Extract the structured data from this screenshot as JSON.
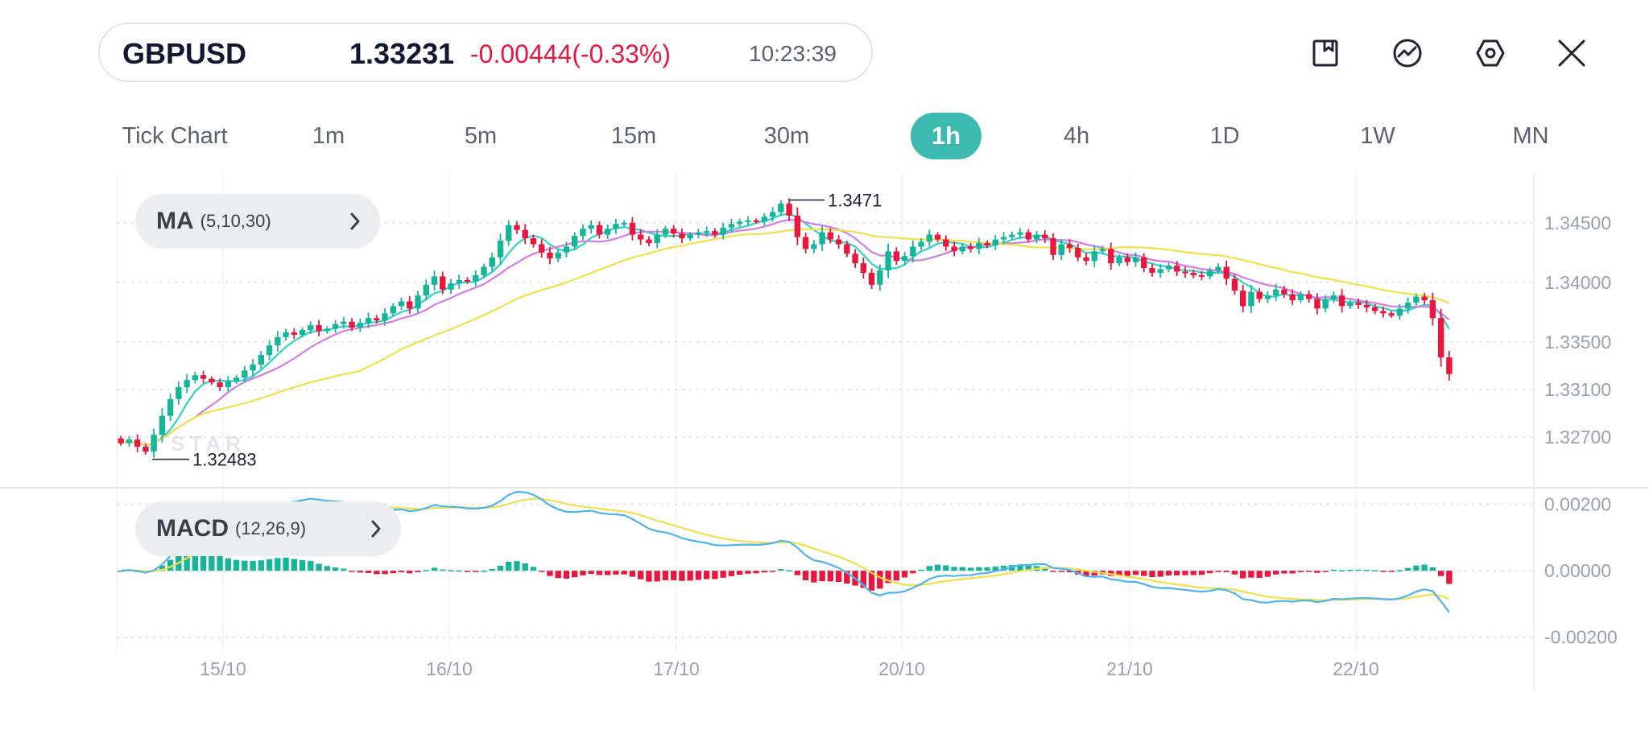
{
  "quote": {
    "symbol": "GBPUSD",
    "price": "1.33231",
    "change": "-0.00444(-0.33%)",
    "time": "10:23:39"
  },
  "toolbar": {
    "icons": [
      "bookmark-icon",
      "indicator-trend-icon",
      "settings-hex-icon",
      "close-icon"
    ]
  },
  "timeframes": [
    "Tick Chart",
    "1m",
    "5m",
    "15m",
    "30m",
    "1h",
    "4h",
    "1D",
    "1W",
    "MN"
  ],
  "active_timeframe": "1h",
  "indicators": {
    "ma": {
      "name": "MA",
      "params": "(5,10,30)"
    },
    "macd": {
      "name": "MACD",
      "params": "(12,26,9)"
    }
  },
  "colors": {
    "up": "#16b59a",
    "down": "#e8173d",
    "ma5": "#2fd3c7",
    "ma10": "#d37be8",
    "ma30": "#f2e04b",
    "dif": "#4cb3f0",
    "dea": "#f2e04b",
    "accent": "#3dbab0"
  },
  "chart_data": {
    "type": "candlestick",
    "symbol": "GBPUSD",
    "timeframe": "1h",
    "x_tick_labels": [
      "15/10",
      "16/10",
      "17/10",
      "20/10",
      "21/10",
      "22/10"
    ],
    "y_tick_labels": [
      "1.34500",
      "1.34000",
      "1.33500",
      "1.33100",
      "1.32700"
    ],
    "ylim": [
      1.3235,
      1.3485
    ],
    "high_marker": "1.3471",
    "low_marker": "1.32483",
    "closes": [
      1.3265,
      1.3268,
      1.3262,
      1.3258,
      1.3272,
      1.3288,
      1.3302,
      1.3312,
      1.3318,
      1.3322,
      1.3319,
      1.3316,
      1.3312,
      1.3317,
      1.332,
      1.3326,
      1.3331,
      1.3339,
      1.3347,
      1.3354,
      1.3358,
      1.3356,
      1.336,
      1.3364,
      1.3359,
      1.3361,
      1.3365,
      1.3367,
      1.3362,
      1.3366,
      1.337,
      1.3368,
      1.3374,
      1.338,
      1.3384,
      1.3378,
      1.3389,
      1.3398,
      1.3405,
      1.3394,
      1.3399,
      1.3402,
      1.3401,
      1.3406,
      1.3413,
      1.3421,
      1.3435,
      1.3448,
      1.3444,
      1.3437,
      1.3432,
      1.3425,
      1.342,
      1.3425,
      1.343,
      1.3439,
      1.3445,
      1.3448,
      1.344,
      1.3445,
      1.3449,
      1.345,
      1.344,
      1.3436,
      1.3433,
      1.344,
      1.3445,
      1.3441,
      1.3437,
      1.344,
      1.3442,
      1.3443,
      1.344,
      1.3446,
      1.3449,
      1.3451,
      1.3452,
      1.3451,
      1.3455,
      1.3459,
      1.3466,
      1.3456,
      1.3438,
      1.3428,
      1.3432,
      1.3442,
      1.3436,
      1.3432,
      1.3424,
      1.3416,
      1.3408,
      1.3398,
      1.341,
      1.3426,
      1.3418,
      1.3422,
      1.343,
      1.3434,
      1.344,
      1.3436,
      1.343,
      1.3426,
      1.343,
      1.3428,
      1.3433,
      1.3431,
      1.3436,
      1.3438,
      1.344,
      1.3442,
      1.3436,
      1.344,
      1.3437,
      1.3423,
      1.3432,
      1.3429,
      1.3421,
      1.3418,
      1.3426,
      1.3428,
      1.3416,
      1.3421,
      1.3417,
      1.3421,
      1.3412,
      1.3408,
      1.3411,
      1.3414,
      1.3409,
      1.3408,
      1.3406,
      1.3405,
      1.341,
      1.3413,
      1.3403,
      1.3393,
      1.338,
      1.3392,
      1.3386,
      1.3389,
      1.3394,
      1.339,
      1.3385,
      1.339,
      1.3386,
      1.3378,
      1.3386,
      1.3389,
      1.338,
      1.3383,
      1.3381,
      1.3379,
      1.3376,
      1.3374,
      1.3372,
      1.3378,
      1.3383,
      1.3388,
      1.3385,
      1.337,
      1.3337,
      1.3323
    ],
    "ma_lines": [
      {
        "name": "MA5",
        "period": 5
      },
      {
        "name": "MA10",
        "period": 10
      },
      {
        "name": "MA30",
        "period": 30
      }
    ],
    "macd": {
      "y_tick_labels": [
        "0.00200",
        "0.00000",
        "-0.00200"
      ],
      "ylim": [
        -0.0022,
        0.0024
      ],
      "histogram": "dif minus dea, green above zero, red below"
    }
  }
}
